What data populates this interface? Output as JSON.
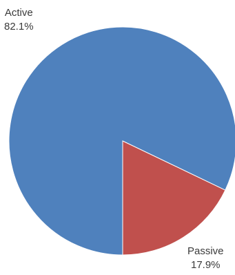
{
  "chart_data": {
    "type": "pie",
    "slices": [
      {
        "label": "Active",
        "value": 82.1,
        "value_text": "82.1%",
        "color": "#4f81bd"
      },
      {
        "label": "Passive",
        "value": 17.9,
        "value_text": "17.9%",
        "color": "#c0504d"
      }
    ]
  }
}
